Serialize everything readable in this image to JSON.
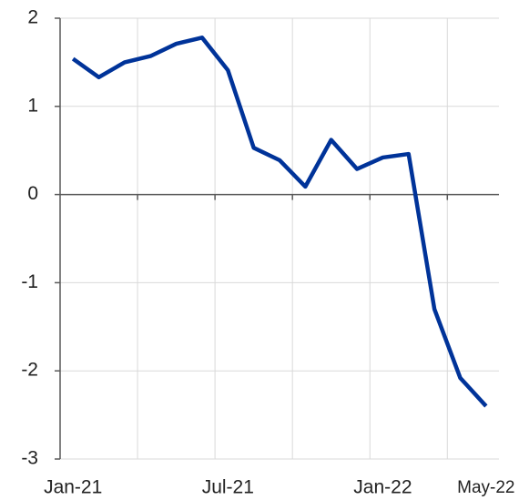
{
  "chart_data": {
    "type": "line",
    "categories": [
      "Jan-21",
      null,
      null,
      null,
      null,
      null,
      "Jul-21",
      null,
      null,
      null,
      null,
      null,
      "Jan-22",
      null,
      null,
      null,
      "May-22"
    ],
    "series": [
      {
        "color": "#003399",
        "values": [
          1.54,
          1.33,
          1.5,
          1.57,
          1.71,
          1.78,
          1.41,
          0.53,
          0.39,
          0.09,
          0.62,
          0.29,
          0.42,
          0.46,
          -1.3,
          -2.08,
          -2.4
        ]
      }
    ],
    "ylim": [
      -3,
      2
    ],
    "yticks": [
      -3,
      -2,
      -1,
      0,
      1,
      2
    ],
    "grid": true
  }
}
